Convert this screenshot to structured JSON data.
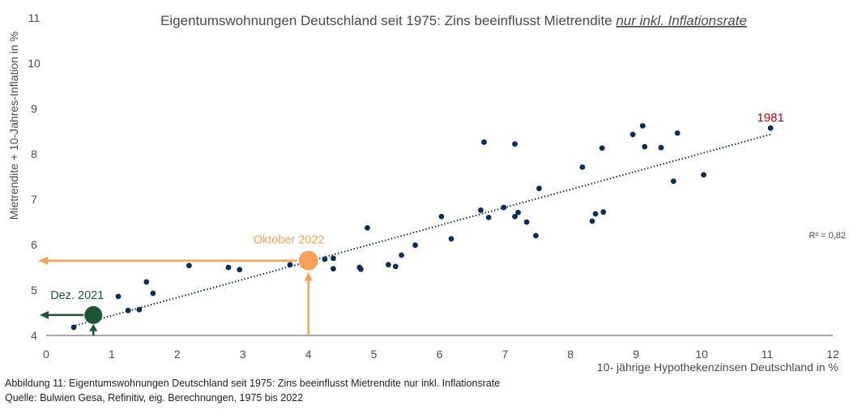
{
  "chart_data": {
    "type": "scatter",
    "title_main": "Eigentumswohnungen Deutschland seit 1975: Zins beeinflusst Mietrendite ",
    "title_emph": "nur inkl. Inflationsrate",
    "xlabel": "10- jährige Hypothekenzinsen Deutschland in %",
    "ylabel": "Mietrendite + 10-Jahres-Inflation in %",
    "xlim": [
      0,
      12
    ],
    "ylim": [
      4,
      11
    ],
    "xticks": [
      "0",
      "1",
      "2",
      "3",
      "4",
      "5",
      "6",
      "7",
      "8",
      "9",
      "10",
      "11",
      "12"
    ],
    "yticks": [
      "4",
      "5",
      "6",
      "7",
      "8",
      "9",
      "10",
      "11"
    ],
    "r2_label": "R² = 0,82",
    "points": [
      [
        0.42,
        4.18
      ],
      [
        1.1,
        4.86
      ],
      [
        1.25,
        4.55
      ],
      [
        1.42,
        4.57
      ],
      [
        1.53,
        5.18
      ],
      [
        1.63,
        4.93
      ],
      [
        2.18,
        5.54
      ],
      [
        2.78,
        5.5
      ],
      [
        2.95,
        5.45
      ],
      [
        3.72,
        5.56
      ],
      [
        4.25,
        5.68
      ],
      [
        4.38,
        5.7
      ],
      [
        4.38,
        5.47
      ],
      [
        4.78,
        5.5
      ],
      [
        4.8,
        5.46
      ],
      [
        4.9,
        6.37
      ],
      [
        5.22,
        5.56
      ],
      [
        5.33,
        5.52
      ],
      [
        5.42,
        5.77
      ],
      [
        5.63,
        5.99
      ],
      [
        6.03,
        6.62
      ],
      [
        6.18,
        6.13
      ],
      [
        6.63,
        6.76
      ],
      [
        6.68,
        8.26
      ],
      [
        6.75,
        6.6
      ],
      [
        6.98,
        6.82
      ],
      [
        7.15,
        8.22
      ],
      [
        7.15,
        6.62
      ],
      [
        7.2,
        6.71
      ],
      [
        7.33,
        6.5
      ],
      [
        7.47,
        6.2
      ],
      [
        7.52,
        7.24
      ],
      [
        8.18,
        7.71
      ],
      [
        8.33,
        6.52
      ],
      [
        8.38,
        6.68
      ],
      [
        8.48,
        8.13
      ],
      [
        8.5,
        6.72
      ],
      [
        8.95,
        8.43
      ],
      [
        9.1,
        8.62
      ],
      [
        9.13,
        8.16
      ],
      [
        9.38,
        8.14
      ],
      [
        9.57,
        7.4
      ],
      [
        9.63,
        8.46
      ],
      [
        10.03,
        7.54
      ],
      [
        11.05,
        8.57
      ]
    ],
    "trendline": {
      "x": [
        0.4,
        11.05
      ],
      "y": [
        4.2,
        8.43
      ]
    },
    "highlights": [
      {
        "label": "Oktober 2022",
        "x": 4.0,
        "y": 5.65,
        "color": "#F7A15B"
      },
      {
        "label": "Dez. 2021",
        "x": 0.72,
        "y": 4.45,
        "color": "#1E5631"
      }
    ],
    "annotations": [
      {
        "label": "1981",
        "x": 11.05,
        "y": 8.57,
        "color": "#C00000"
      }
    ],
    "colors": {
      "points": "#0D2E55",
      "trendline": "#0D2E55",
      "axis": "#555555"
    }
  },
  "caption": {
    "line1": "Abbildung 11: Eigentumswohnungen Deutschland seit 1975: Zins beeinflusst Mietrendite nur inkl. Inflationsrate",
    "line2": "Quelle: Bulwien Gesa, Refinitiv, eig. Berechnungen, 1975 bis 2022"
  }
}
